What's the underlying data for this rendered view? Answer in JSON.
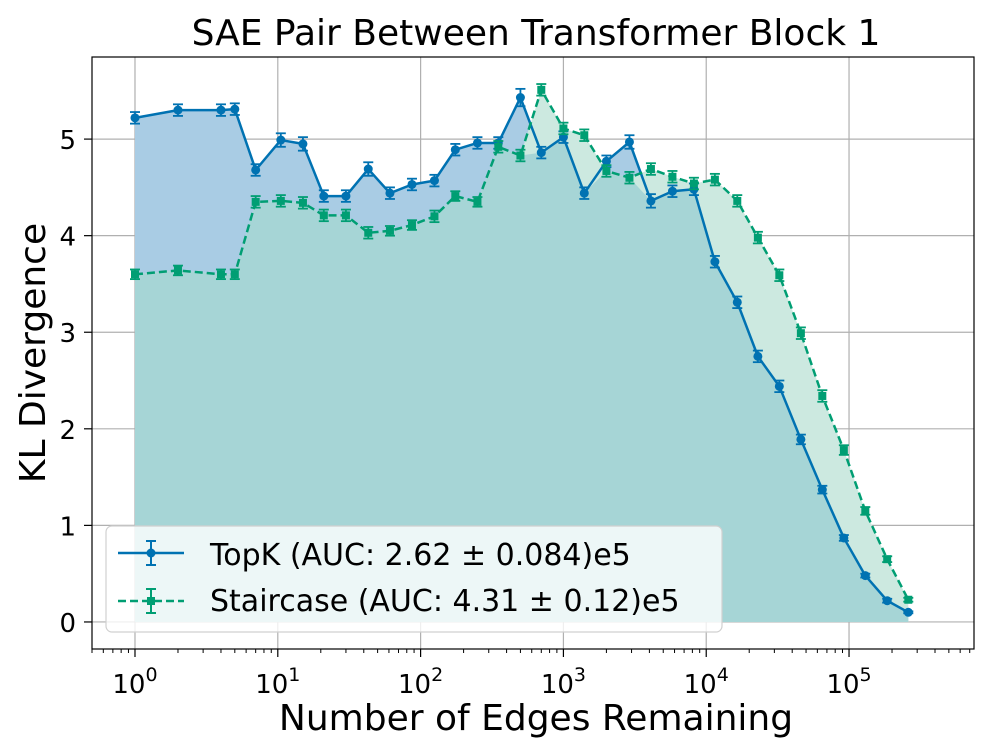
{
  "chart_data": {
    "type": "line",
    "title": "SAE Pair Between Transformer Block 1",
    "xlabel": "Number of Edges Remaining",
    "ylabel": "KL Divergence",
    "xscale": "log",
    "xlim": [
      0.5,
      750000
    ],
    "ylim": [
      -0.28,
      5.85
    ],
    "grid": true,
    "legend_position": "lower-left",
    "x_ticks": [
      {
        "value": 1,
        "base": "10",
        "exp": "0"
      },
      {
        "value": 10,
        "base": "10",
        "exp": "1"
      },
      {
        "value": 100,
        "base": "10",
        "exp": "2"
      },
      {
        "value": 1000,
        "base": "10",
        "exp": "3"
      },
      {
        "value": 10000,
        "base": "10",
        "exp": "4"
      },
      {
        "value": 100000,
        "base": "10",
        "exp": "5"
      }
    ],
    "y_ticks": [
      {
        "value": 0,
        "label": "0"
      },
      {
        "value": 1,
        "label": "1"
      },
      {
        "value": 2,
        "label": "2"
      },
      {
        "value": 3,
        "label": "3"
      },
      {
        "value": 4,
        "label": "4"
      },
      {
        "value": 5,
        "label": "5"
      }
    ],
    "series": [
      {
        "name": "TopK (AUC: 2.62 ± 0.084)e5",
        "color": "#0072b2",
        "line_style": "solid",
        "marker": "circle",
        "fill_color": "#a9cce4",
        "points": [
          [
            1,
            5.22,
            0.06
          ],
          [
            2,
            5.3,
            0.06
          ],
          [
            4,
            5.3,
            0.06
          ],
          [
            5,
            5.31,
            0.06
          ],
          [
            7,
            4.68,
            0.06
          ],
          [
            10.5,
            4.99,
            0.07
          ],
          [
            15,
            4.95,
            0.07
          ],
          [
            21,
            4.41,
            0.06
          ],
          [
            30,
            4.41,
            0.06
          ],
          [
            43,
            4.69,
            0.07
          ],
          [
            61,
            4.44,
            0.06
          ],
          [
            87,
            4.53,
            0.06
          ],
          [
            125,
            4.57,
            0.06
          ],
          [
            175,
            4.89,
            0.06
          ],
          [
            250,
            4.96,
            0.06
          ],
          [
            350,
            4.96,
            0.06
          ],
          [
            500,
            5.43,
            0.09
          ],
          [
            700,
            4.86,
            0.06
          ],
          [
            1000,
            5.02,
            0.06
          ],
          [
            1400,
            4.44,
            0.06
          ],
          [
            2000,
            4.77,
            0.06
          ],
          [
            2900,
            4.97,
            0.07
          ],
          [
            4100,
            4.36,
            0.07
          ],
          [
            5800,
            4.46,
            0.06
          ],
          [
            8200,
            4.48,
            0.06
          ],
          [
            11500,
            3.73,
            0.06
          ],
          [
            16500,
            3.31,
            0.06
          ],
          [
            23000,
            2.75,
            0.06
          ],
          [
            32500,
            2.44,
            0.06
          ],
          [
            46000,
            1.89,
            0.05
          ],
          [
            65000,
            1.37,
            0.04
          ],
          [
            92000,
            0.87,
            0.03
          ],
          [
            130000,
            0.48,
            0.02
          ],
          [
            185000,
            0.22,
            0.02
          ],
          [
            260000,
            0.1,
            0.01
          ]
        ]
      },
      {
        "name": "Staircase (AUC: 4.31 ± 0.12)e5",
        "color": "#009e73",
        "line_style": "dashed",
        "marker": "square",
        "fill_color": "#cce9e0",
        "points": [
          [
            1,
            3.6,
            0.05
          ],
          [
            2,
            3.64,
            0.05
          ],
          [
            4,
            3.6,
            0.05
          ],
          [
            5,
            3.6,
            0.05
          ],
          [
            7,
            4.35,
            0.06
          ],
          [
            10.5,
            4.36,
            0.06
          ],
          [
            15,
            4.34,
            0.06
          ],
          [
            21,
            4.21,
            0.06
          ],
          [
            30,
            4.21,
            0.06
          ],
          [
            43,
            4.03,
            0.06
          ],
          [
            61,
            4.05,
            0.05
          ],
          [
            87,
            4.11,
            0.05
          ],
          [
            125,
            4.2,
            0.06
          ],
          [
            175,
            4.41,
            0.05
          ],
          [
            250,
            4.35,
            0.05
          ],
          [
            350,
            4.92,
            0.06
          ],
          [
            500,
            4.83,
            0.06
          ],
          [
            700,
            5.51,
            0.06
          ],
          [
            1000,
            5.11,
            0.06
          ],
          [
            1400,
            5.04,
            0.06
          ],
          [
            2000,
            4.67,
            0.06
          ],
          [
            2900,
            4.6,
            0.06
          ],
          [
            4100,
            4.69,
            0.06
          ],
          [
            5800,
            4.61,
            0.06
          ],
          [
            8200,
            4.54,
            0.06
          ],
          [
            11500,
            4.58,
            0.06
          ],
          [
            16500,
            4.36,
            0.06
          ],
          [
            23000,
            3.98,
            0.06
          ],
          [
            32500,
            3.59,
            0.06
          ],
          [
            46000,
            2.99,
            0.06
          ],
          [
            65000,
            2.34,
            0.06
          ],
          [
            92000,
            1.78,
            0.05
          ],
          [
            130000,
            1.15,
            0.04
          ],
          [
            185000,
            0.65,
            0.03
          ],
          [
            260000,
            0.23,
            0.02
          ]
        ]
      }
    ],
    "overlap_fill_color": "#a6d5d6"
  }
}
